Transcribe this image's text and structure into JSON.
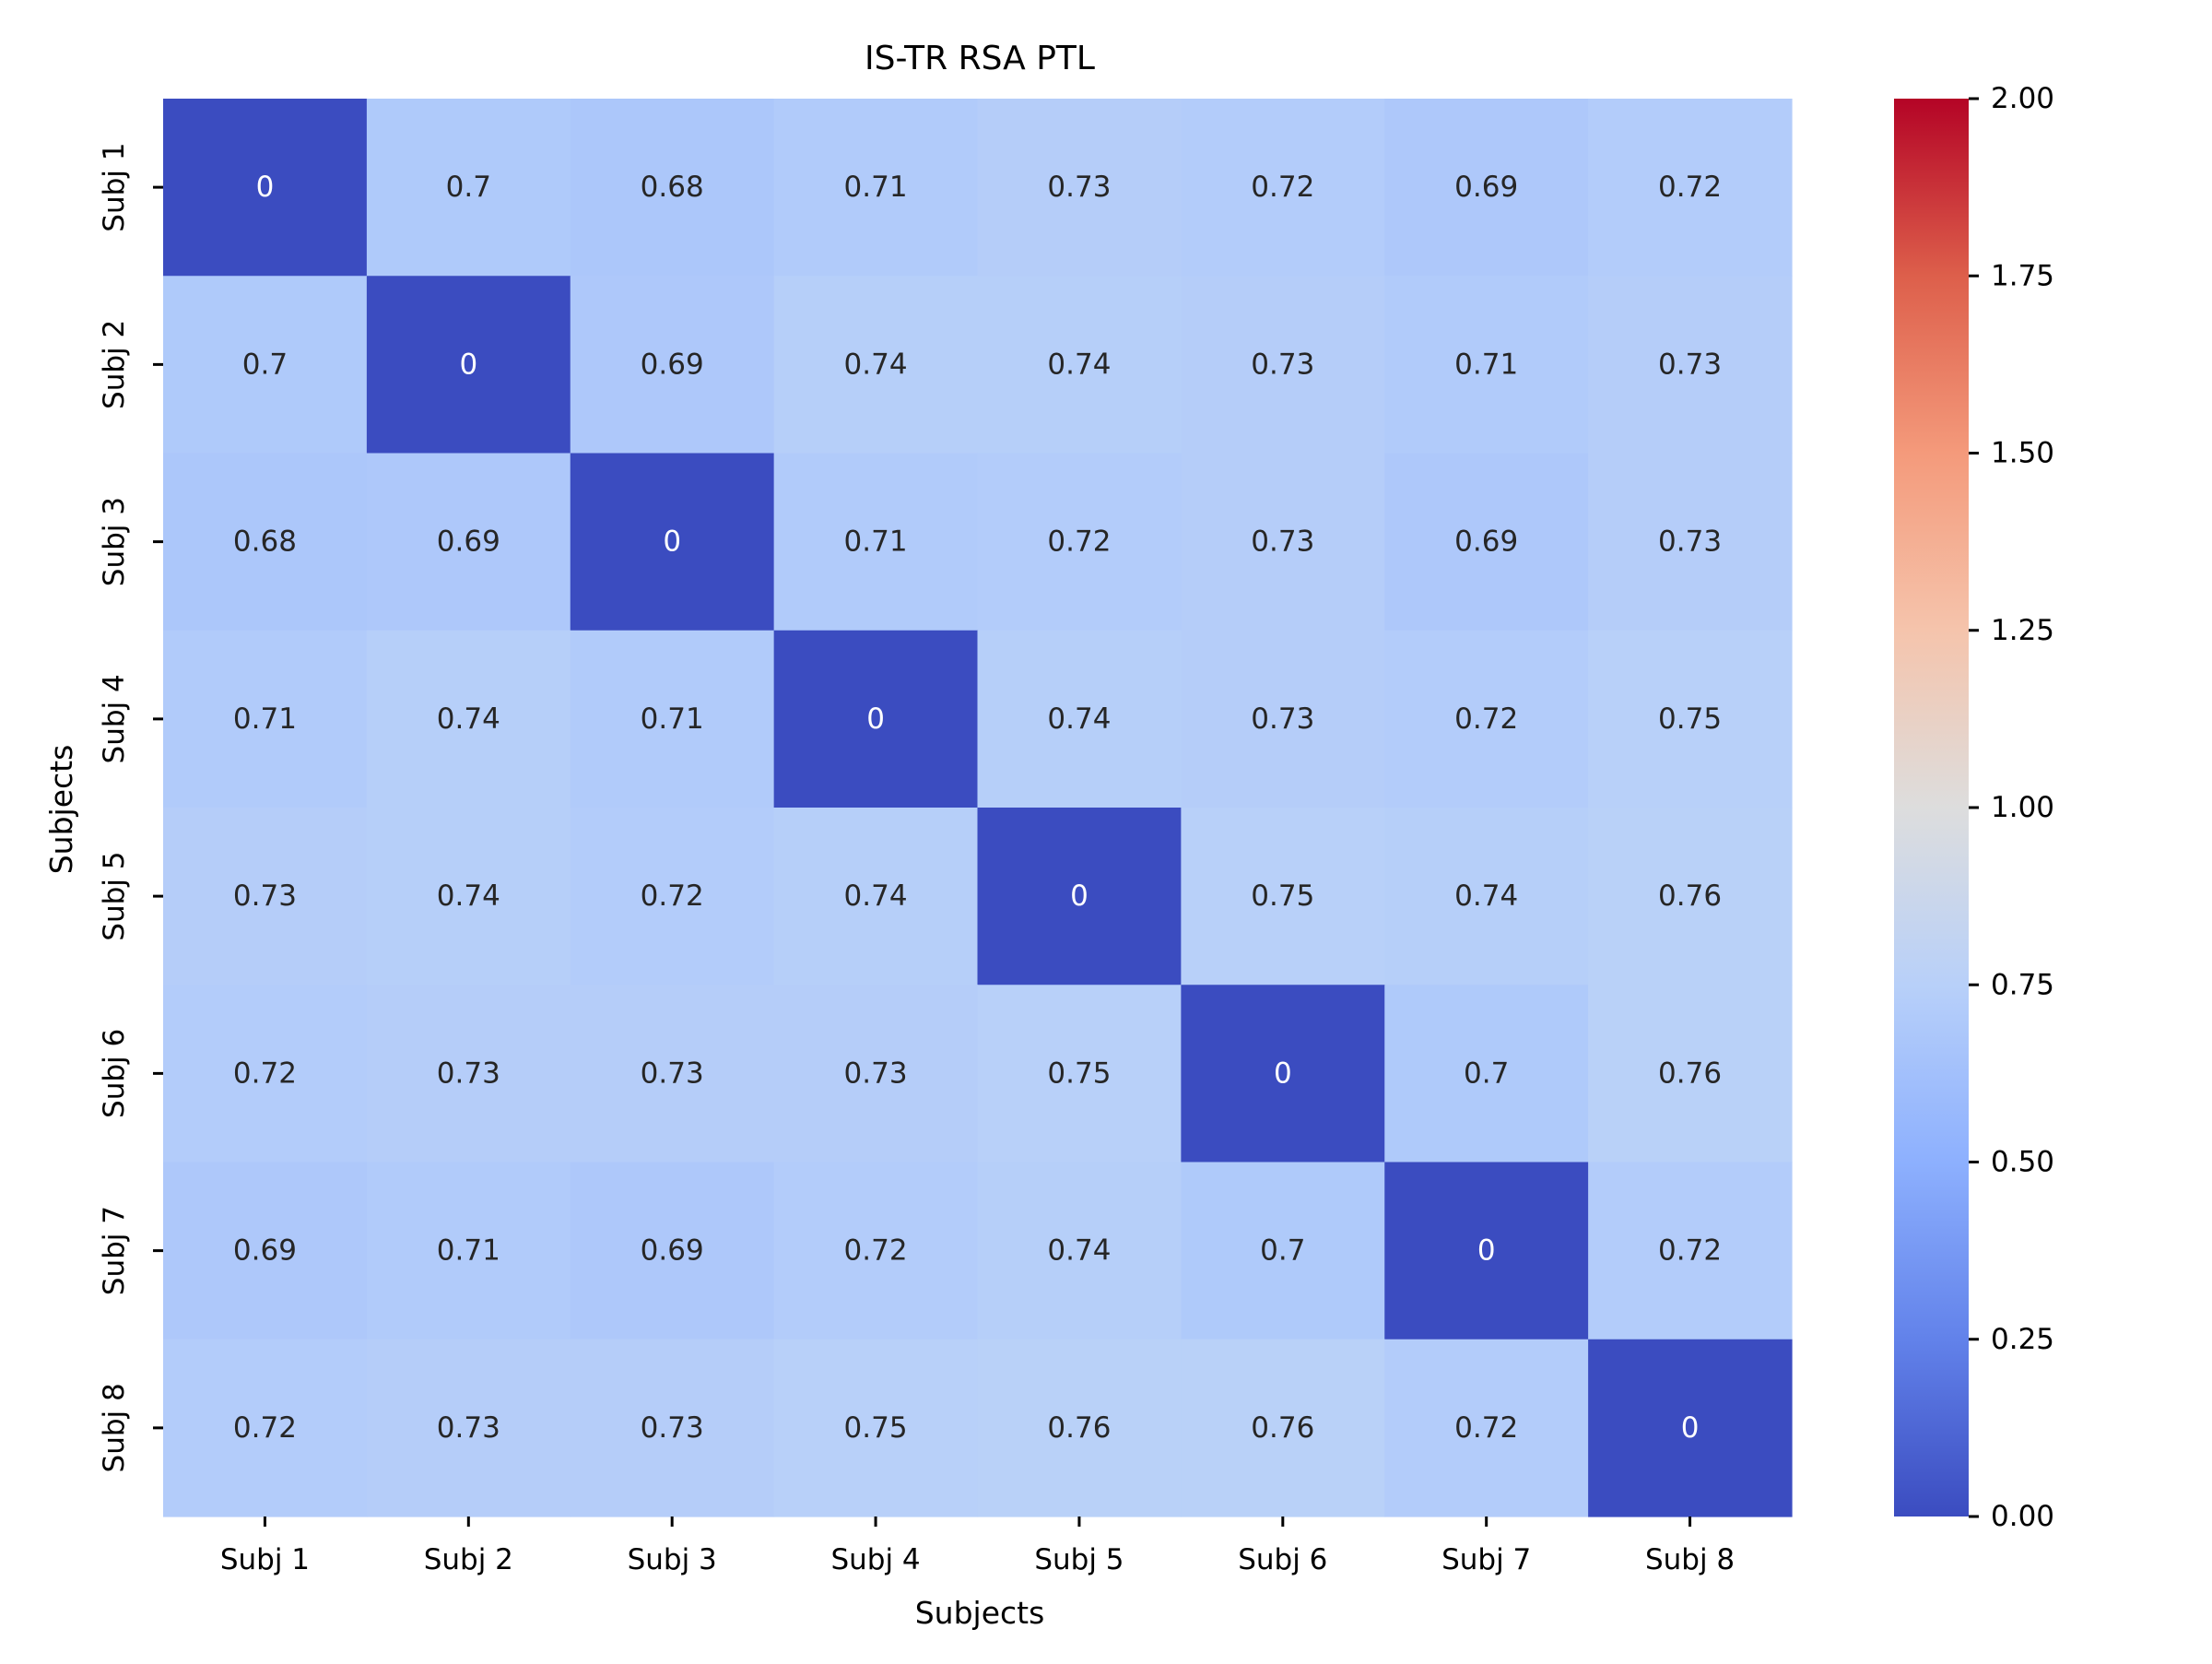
{
  "chart_data": {
    "type": "heatmap",
    "title": "IS-TR RSA PTL",
    "xlabel": "Subjects",
    "ylabel": "Subjects",
    "x_categories": [
      "Subj 1",
      "Subj 2",
      "Subj 3",
      "Subj 4",
      "Subj 5",
      "Subj 6",
      "Subj 7",
      "Subj 8"
    ],
    "y_categories": [
      "Subj 1",
      "Subj 2",
      "Subj 3",
      "Subj 4",
      "Subj 5",
      "Subj 6",
      "Subj 7",
      "Subj 8"
    ],
    "values": [
      [
        0,
        0.7,
        0.68,
        0.71,
        0.73,
        0.72,
        0.69,
        0.72
      ],
      [
        0.7,
        0,
        0.69,
        0.74,
        0.74,
        0.73,
        0.71,
        0.73
      ],
      [
        0.68,
        0.69,
        0,
        0.71,
        0.72,
        0.73,
        0.69,
        0.73
      ],
      [
        0.71,
        0.74,
        0.71,
        0,
        0.74,
        0.73,
        0.72,
        0.75
      ],
      [
        0.73,
        0.74,
        0.72,
        0.74,
        0,
        0.75,
        0.74,
        0.76
      ],
      [
        0.72,
        0.73,
        0.73,
        0.73,
        0.75,
        0,
        0.7,
        0.76
      ],
      [
        0.69,
        0.71,
        0.69,
        0.72,
        0.74,
        0.7,
        0,
        0.72
      ],
      [
        0.72,
        0.73,
        0.73,
        0.75,
        0.76,
        0.76,
        0.72,
        0
      ]
    ],
    "annotations": [
      [
        "0",
        "0.7",
        "0.68",
        "0.71",
        "0.73",
        "0.72",
        "0.69",
        "0.72"
      ],
      [
        "0.7",
        "0",
        "0.69",
        "0.74",
        "0.74",
        "0.73",
        "0.71",
        "0.73"
      ],
      [
        "0.68",
        "0.69",
        "0",
        "0.71",
        "0.72",
        "0.73",
        "0.69",
        "0.73"
      ],
      [
        "0.71",
        "0.74",
        "0.71",
        "0",
        "0.74",
        "0.73",
        "0.72",
        "0.75"
      ],
      [
        "0.73",
        "0.74",
        "0.72",
        "0.74",
        "0",
        "0.75",
        "0.74",
        "0.76"
      ],
      [
        "0.72",
        "0.73",
        "0.73",
        "0.73",
        "0.75",
        "0",
        "0.7",
        "0.76"
      ],
      [
        "0.69",
        "0.71",
        "0.69",
        "0.72",
        "0.74",
        "0.7",
        "0",
        "0.72"
      ],
      [
        "0.72",
        "0.73",
        "0.73",
        "0.75",
        "0.76",
        "0.76",
        "0.72",
        "0"
      ]
    ],
    "colorbar": {
      "colormap": "coolwarm",
      "range": [
        0,
        2
      ],
      "ticks": [
        0,
        0.25,
        0.5,
        0.75,
        1.0,
        1.25,
        1.5,
        1.75,
        2.0
      ],
      "tick_labels": [
        "0.00",
        "0.25",
        "0.50",
        "0.75",
        "1.00",
        "1.25",
        "1.50",
        "1.75",
        "2.00"
      ]
    },
    "colormap_stops": [
      "#3b4cc0",
      "#6282ea",
      "#8db0fe",
      "#b8d0f9",
      "#dddddd",
      "#f5c4ac",
      "#f49a7b",
      "#dd5f4b",
      "#b40426"
    ],
    "annotation_colors": {
      "light": "#ffffff",
      "dark": "#262626"
    }
  }
}
